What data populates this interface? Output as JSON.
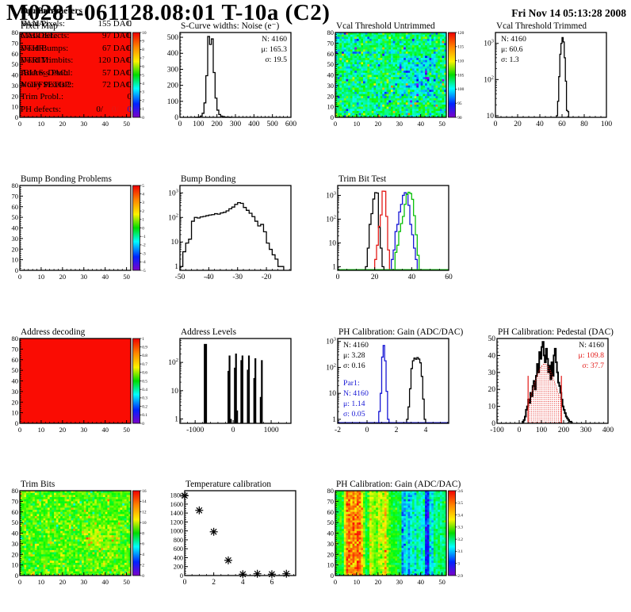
{
  "header": {
    "title": "M0281-061128.08:01 T-10a (C2)",
    "date": "Fri Nov 14 05:13:28 2008"
  },
  "colors": {
    "map_red": "#fa0c03",
    "hist_black": "#000000",
    "hist_red": "#e31a17",
    "hist_blue": "#1717d5",
    "hist_green": "#0ac00a"
  },
  "summary": {
    "heading": "Summary",
    "rows": [
      {
        "label": "Dead Pixels:",
        "value": "0"
      },
      {
        "label": "Mask defects:",
        "value": "0"
      },
      {
        "label": "Dead Bumps:",
        "value": "0"
      },
      {
        "label": "Dead Trimbits:",
        "value": "0"
      },
      {
        "label": "Address Probl:",
        "value": "0"
      },
      {
        "label": "Noisy Pixels 2:",
        "value": "0"
      },
      {
        "label": "Trim Probl.:",
        "value": "0"
      }
    ],
    "ph_defects": {
      "label": "PH defects:",
      "parts": [
        {
          "text": "0/",
          "color": "#000000"
        },
        {
          "text": "0/",
          "color": "#e31a17"
        },
        {
          "text": "0",
          "color": "#1717d5"
        }
      ]
    }
  },
  "op_parameters": {
    "heading": "Op. Parameters",
    "rows": [
      {
        "label": "VANA:",
        "value": "155 DAC"
      },
      {
        "label": "CALDEL:",
        "value": "97 DAC"
      },
      {
        "label": "VTHR:",
        "value": "67 DAC"
      },
      {
        "label": "VTRIM:",
        "value": "120 DAC"
      },
      {
        "label": "IBIAS_DAC:",
        "value": "57 DAC"
      },
      {
        "label": "VOFFSETOP:",
        "value": "72 DAC"
      }
    ]
  },
  "chart_data": [
    {
      "key": "pixel-map",
      "row": 0,
      "col": 0,
      "type": "heatmap",
      "title": "Pixel Map",
      "xlim": [
        0,
        52
      ],
      "ylim": [
        0,
        80
      ],
      "x_major": [
        0,
        10,
        20,
        30,
        40,
        50
      ],
      "y_major": [
        0,
        10,
        20,
        30,
        40,
        50,
        60,
        70,
        80
      ],
      "x_mdiv": 5,
      "y_mdiv": 5,
      "fill": "solid",
      "solid_color": "#fa0c03",
      "colorbar": {
        "labels": [
          "0",
          "1",
          "2",
          "3",
          "4",
          "5",
          "6",
          "7",
          "8",
          "9",
          "10"
        ]
      }
    },
    {
      "key": "scurve-noise",
      "row": 0,
      "col": 1,
      "type": "hist",
      "title": "S-Curve widths: Noise (e⁻)",
      "yscale": "lin",
      "xlim": [
        0,
        600
      ],
      "ylim": [
        0,
        530
      ],
      "x_major": [
        0,
        100,
        200,
        300,
        400,
        500,
        600
      ],
      "y_major": [
        0,
        100,
        200,
        300,
        400,
        500
      ],
      "x_mdiv": 5,
      "y_mdiv": 5,
      "series": [
        {
          "color": "#000000",
          "bins": {
            "start": 80,
            "width": 10,
            "values": [
              0,
              0,
              2,
              8,
              25,
              90,
              260,
              505,
              455,
              490,
              280,
              120,
              45,
              18,
              8,
              4,
              2,
              1,
              1,
              0
            ]
          }
        }
      ],
      "stats": [
        {
          "anchor": "tr",
          "dy": 0,
          "lines": [
            {
              "t": "N: 4160",
              "c": "#000000"
            },
            {
              "t": "μ: 165.3",
              "c": "#000000"
            },
            {
              "t": "σ: 19.5",
              "c": "#000000"
            }
          ]
        }
      ]
    },
    {
      "key": "vcal-untrimmed",
      "row": 0,
      "col": 2,
      "type": "heatmap",
      "title": "Vcal Threshold Untrimmed",
      "xlim": [
        0,
        52
      ],
      "ylim": [
        0,
        80
      ],
      "x_major": [
        0,
        10,
        20,
        30,
        40,
        50
      ],
      "y_major": [
        0,
        10,
        20,
        30,
        40,
        50,
        60,
        70,
        80
      ],
      "x_mdiv": 5,
      "y_mdiv": 5,
      "fill": "noise",
      "seed": 42,
      "noise": {
        "mean": 103,
        "sd": 3.2,
        "min": 88,
        "max": 121,
        "low_frac": 0.03,
        "low_shift": -9,
        "high_frac": 0.035,
        "high_shift": 8,
        "patch": {
          "x0": 30,
          "x1": 46,
          "y0": 20,
          "y1": 56,
          "shift": -3.5
        }
      },
      "colorbar": {
        "labels": [
          "90",
          "95",
          "100",
          "105",
          "110",
          "115",
          "120"
        ]
      }
    },
    {
      "key": "vcal-trimmed",
      "row": 0,
      "col": 3,
      "type": "hist",
      "title": "Vcal Threshold Trimmed",
      "yscale": "log",
      "xlim": [
        0,
        100
      ],
      "ylim": [
        9,
        2000
      ],
      "x_major": [
        0,
        20,
        40,
        60,
        80,
        100
      ],
      "x_mdiv": 4,
      "series": [
        {
          "color": "#000000",
          "bins": {
            "start": 55,
            "width": 1,
            "values": [
              10,
              25,
              120,
              500,
              1000,
              1450,
              1100,
              400,
              90,
              14,
              13
            ]
          }
        }
      ],
      "stats": [
        {
          "anchor": "tl",
          "dy": 0,
          "lines": [
            {
              "t": "N: 4160",
              "c": "#000000"
            },
            {
              "t": "μ: 60.6",
              "c": "#000000"
            },
            {
              "t": "σ:  1.3",
              "c": "#000000"
            }
          ]
        }
      ]
    },
    {
      "key": "bump-problems",
      "row": 1,
      "col": 0,
      "type": "heatmap",
      "title": "Bump Bonding Problems",
      "xlim": [
        0,
        52
      ],
      "ylim": [
        0,
        80
      ],
      "x_major": [
        0,
        10,
        20,
        30,
        40,
        50
      ],
      "y_major": [
        0,
        10,
        20,
        30,
        40,
        50,
        60,
        70,
        80
      ],
      "x_mdiv": 5,
      "y_mdiv": 5,
      "fill": "none",
      "colorbar": {
        "labels": [
          "-5",
          "-4",
          "-3",
          "-2",
          "-1",
          "0",
          "1",
          "2",
          "3",
          "4",
          "5"
        ]
      }
    },
    {
      "key": "bump-bonding",
      "row": 1,
      "col": 1,
      "type": "hist",
      "title": "Bump Bonding",
      "yscale": "log",
      "xlim": [
        -50,
        -11.5
      ],
      "ylim": [
        0.7,
        2000
      ],
      "x_major": [
        -50,
        -40,
        -30,
        -20
      ],
      "x_mdiv": 5,
      "series": [
        {
          "color": "#000000",
          "bins": {
            "start": -50,
            "width": 1,
            "values": [
              1,
              4,
              9,
              13,
              70,
              100,
              95,
              105,
              110,
              118,
              125,
              130,
              142,
              136,
              152,
              162,
              185,
              225,
              265,
              340,
              400,
              375,
              255,
              195,
              148,
              108,
              70,
              45,
              52,
              26,
              9,
              5,
              3,
              2,
              1,
              1
            ]
          }
        }
      ]
    },
    {
      "key": "trim-bit-test",
      "row": 1,
      "col": 2,
      "type": "hist",
      "title": "Trim Bit Test",
      "yscale": "log",
      "xlim": [
        0,
        60
      ],
      "ylim": [
        0.7,
        2600
      ],
      "x_major": [
        0,
        20,
        40,
        60
      ],
      "x_mdiv": 4,
      "baseline_color": "#0ac00a",
      "series": [
        {
          "color": "#000000",
          "bins": {
            "start": 15,
            "width": 1,
            "values": [
              1,
              6,
              60,
              170,
              700,
              1300,
              1250,
              45,
              6,
              1
            ]
          }
        },
        {
          "color": "#e31a17",
          "bins": {
            "start": 20,
            "width": 1,
            "values": [
              2,
              8,
              50,
              150,
              1500,
              1480,
              130,
              5
            ]
          }
        },
        {
          "color": "#1717d5",
          "bins": {
            "start": 29,
            "width": 1,
            "values": [
              2,
              5,
              30,
              60,
              200,
              420,
              1000,
              1300,
              1150,
              380,
              60,
              22,
              6,
              2
            ]
          }
        },
        {
          "color": "#0ac00a",
          "bins": {
            "start": 31,
            "width": 1,
            "values": [
              4,
              8,
              30,
              65,
              130,
              420,
              1100,
              1350,
              1200,
              680,
              140,
              22,
              3
            ]
          }
        }
      ]
    },
    {
      "key": "address-decoding",
      "row": 2,
      "col": 0,
      "type": "heatmap",
      "title": "Address decoding",
      "xlim": [
        0,
        52
      ],
      "ylim": [
        0,
        80
      ],
      "x_major": [
        0,
        10,
        20,
        30,
        40,
        50
      ],
      "y_major": [
        0,
        10,
        20,
        30,
        40,
        50,
        60,
        70,
        80
      ],
      "x_mdiv": 5,
      "y_mdiv": 5,
      "fill": "solid",
      "solid_color": "#fa0c03",
      "colorbar": {
        "labels": [
          "0",
          "0.1",
          "0.2",
          "0.3",
          "0.4",
          "0.5",
          "0.6",
          "0.7",
          "0.8",
          "0.9",
          "1"
        ]
      }
    },
    {
      "key": "address-levels",
      "row": 2,
      "col": 1,
      "type": "spikes",
      "title": "Address Levels",
      "yscale": "log",
      "xlim": [
        -1400,
        1520
      ],
      "ylim": [
        0.7,
        700
      ],
      "x_major": [
        -1000,
        0,
        1000
      ],
      "x_mdiv": 5,
      "spikes": [
        [
          -730,
          450,
          4
        ],
        [
          -125,
          50,
          2.2
        ],
        [
          -95,
          175,
          2.2
        ],
        [
          -60,
          1,
          2.2
        ],
        [
          45,
          65,
          2.2
        ],
        [
          75,
          205,
          2.2
        ],
        [
          105,
          2,
          2.2
        ],
        [
          215,
          120,
          2.2
        ],
        [
          245,
          175,
          2.2
        ],
        [
          385,
          55,
          2.2
        ],
        [
          415,
          175,
          2.2
        ],
        [
          555,
          28,
          2.2
        ],
        [
          585,
          140,
          2.2
        ],
        [
          725,
          6,
          2.2
        ],
        [
          755,
          120,
          2.2
        ]
      ]
    },
    {
      "key": "ph-gain-hist",
      "row": 2,
      "col": 2,
      "type": "hist",
      "title": "PH Calibration: Gain (ADC/DAC)",
      "yscale": "log",
      "xlim": [
        -2,
        5.57
      ],
      "ylim": [
        0.7,
        1300
      ],
      "x_major": [
        -2,
        0,
        2,
        4
      ],
      "x_mdiv": 4,
      "baseline_color": "#1717d5",
      "series": [
        {
          "color": "#000000",
          "bins": {
            "start": 2.7,
            "width": 0.1,
            "values": [
              1,
              3,
              15,
              90,
              180,
              230,
              205,
              240,
              210,
              150,
              45,
              6,
              1
            ]
          }
        },
        {
          "color": "#1717d5",
          "bins": {
            "start": 0.8,
            "width": 0.1,
            "values": [
              2,
              10,
              250,
              700,
              180,
              12,
              1
            ]
          }
        }
      ],
      "stats": [
        {
          "anchor": "tl",
          "dy": 0,
          "lines": [
            {
              "t": "N: 4160",
              "c": "#000000"
            },
            {
              "t": "μ: 3.28",
              "c": "#000000"
            },
            {
              "t": "σ: 0.16",
              "c": "#000000"
            }
          ]
        },
        {
          "anchor": "tl",
          "dy": 48,
          "lines": [
            {
              "t": "Par1:",
              "c": "#1717d5"
            },
            {
              "t": "N: 4160",
              "c": "#1717d5"
            },
            {
              "t": "μ: 1.14",
              "c": "#1717d5"
            },
            {
              "t": "σ: 0.05",
              "c": "#1717d5"
            }
          ]
        }
      ]
    },
    {
      "key": "ph-pedestal",
      "row": 2,
      "col": 3,
      "type": "hist",
      "title": "PH Calibration: Pedestal (DAC)",
      "yscale": "lin",
      "xlim": [
        -100,
        400
      ],
      "ylim": [
        0,
        50
      ],
      "x_major": [
        -100,
        0,
        100,
        200,
        300,
        400
      ],
      "y_major": [
        0,
        10,
        20,
        30,
        40,
        50
      ],
      "x_mdiv": 5,
      "y_mdiv": 5,
      "px0": 30,
      "series": [
        {
          "color": "#000000",
          "lw": 2,
          "bins": {
            "start": 15,
            "width": 5,
            "values": [
              1,
              2,
              4,
              8,
              10,
              14,
              12,
              18,
              16,
              22,
              25,
              20,
              28,
              35,
              30,
              42,
              38,
              45,
              48,
              40,
              36,
              44,
              38,
              30,
              34,
              26,
              36,
              28,
              40,
              44,
              36,
              30,
              24,
              22,
              18,
              14,
              10,
              8,
              6,
              4,
              3,
              2,
              1,
              1
            ]
          }
        }
      ],
      "fit": {
        "amp": 35,
        "mu": 115,
        "sigma": 52,
        "range": [
          40,
          190
        ],
        "line_h": 28,
        "color": "#e31a17"
      },
      "stats": [
        {
          "anchor": "tr",
          "dy": 0,
          "lines": [
            {
              "t": "N: 4160",
              "c": "#000000"
            },
            {
              "t": "μ: 109.8",
              "c": "#e31a17"
            },
            {
              "t": "σ: 37.7",
              "c": "#e31a17"
            }
          ]
        }
      ]
    },
    {
      "key": "trim-bits",
      "row": 3,
      "col": 0,
      "type": "heatmap",
      "title": "Trim Bits",
      "xlim": [
        0,
        52
      ],
      "ylim": [
        0,
        80
      ],
      "x_major": [
        0,
        10,
        20,
        30,
        40,
        50
      ],
      "y_major": [
        0,
        10,
        20,
        30,
        40,
        50,
        60,
        70,
        80
      ],
      "x_mdiv": 5,
      "y_mdiv": 5,
      "fill": "noise",
      "seed": 77,
      "noise": {
        "mean": 9.8,
        "sd": 1.1,
        "min": 0,
        "max": 16,
        "low_frac": 0.03,
        "low_shift": -2.5,
        "high_frac": 0.06,
        "high_shift": 2.3,
        "patch": {
          "x0": 30,
          "x1": 46,
          "y0": 24,
          "y1": 46,
          "shift": 0.9
        }
      },
      "colorbar": {
        "labels": [
          "0",
          "2",
          "4",
          "6",
          "8",
          "10",
          "12",
          "14",
          "16"
        ]
      }
    },
    {
      "key": "temp-calibration",
      "row": 3,
      "col": 1,
      "type": "scatter",
      "title": "Temperature calibration",
      "yscale": "lin",
      "xlim": [
        0,
        7.64
      ],
      "ylim": [
        0,
        1900
      ],
      "x_major": [
        0,
        2,
        4,
        6
      ],
      "y_major": [
        0,
        200,
        400,
        600,
        800,
        1000,
        1200,
        1400,
        1600,
        1800
      ],
      "x_mdiv": 4,
      "y_mdiv": 4,
      "px0": 34,
      "points": [
        [
          0,
          1790
        ],
        [
          1,
          1460
        ],
        [
          2,
          980
        ],
        [
          3,
          340
        ],
        [
          4,
          30
        ],
        [
          5,
          40
        ],
        [
          6,
          30
        ],
        [
          7,
          40
        ]
      ]
    },
    {
      "key": "ph-gain-map",
      "row": 3,
      "col": 2,
      "type": "heatmap",
      "title": "PH Calibration: Gain (ADC/DAC)",
      "xlim": [
        0,
        52
      ],
      "ylim": [
        0,
        80
      ],
      "x_major": [
        0,
        10,
        20,
        30,
        40,
        50
      ],
      "y_major": [
        0,
        10,
        20,
        30,
        40,
        50,
        60,
        70,
        80
      ],
      "x_mdiv": 5,
      "y_mdiv": 5,
      "fill": "columns",
      "seed": 99,
      "col_sd": 0.045,
      "col_values": [
        3.3,
        3.28,
        3.32,
        3.26,
        3.45,
        3.56,
        3.58,
        3.54,
        3.57,
        3.52,
        3.58,
        3.56,
        3.5,
        3.38,
        3.25,
        3.32,
        3.45,
        3.42,
        3.38,
        3.36,
        3.44,
        3.4,
        3.44,
        3.5,
        3.38,
        3.34,
        3.3,
        3.28,
        3.3,
        3.26,
        3.28,
        3.05,
        3.1,
        3.15,
        3.05,
        3.12,
        3.18,
        3.1,
        3.2,
        3.15,
        3.12,
        3.18,
        2.98,
        2.96,
        3.15,
        3.1,
        3.22,
        3.18,
        3.25,
        3.2,
        3.22,
        3.24
      ],
      "col_range": [
        2.85,
        3.65
      ],
      "colorbar": {
        "labels": [
          "2.9",
          "3",
          "3.1",
          "3.2",
          "3.3",
          "3.4",
          "3.5",
          "3.6"
        ]
      }
    }
  ]
}
